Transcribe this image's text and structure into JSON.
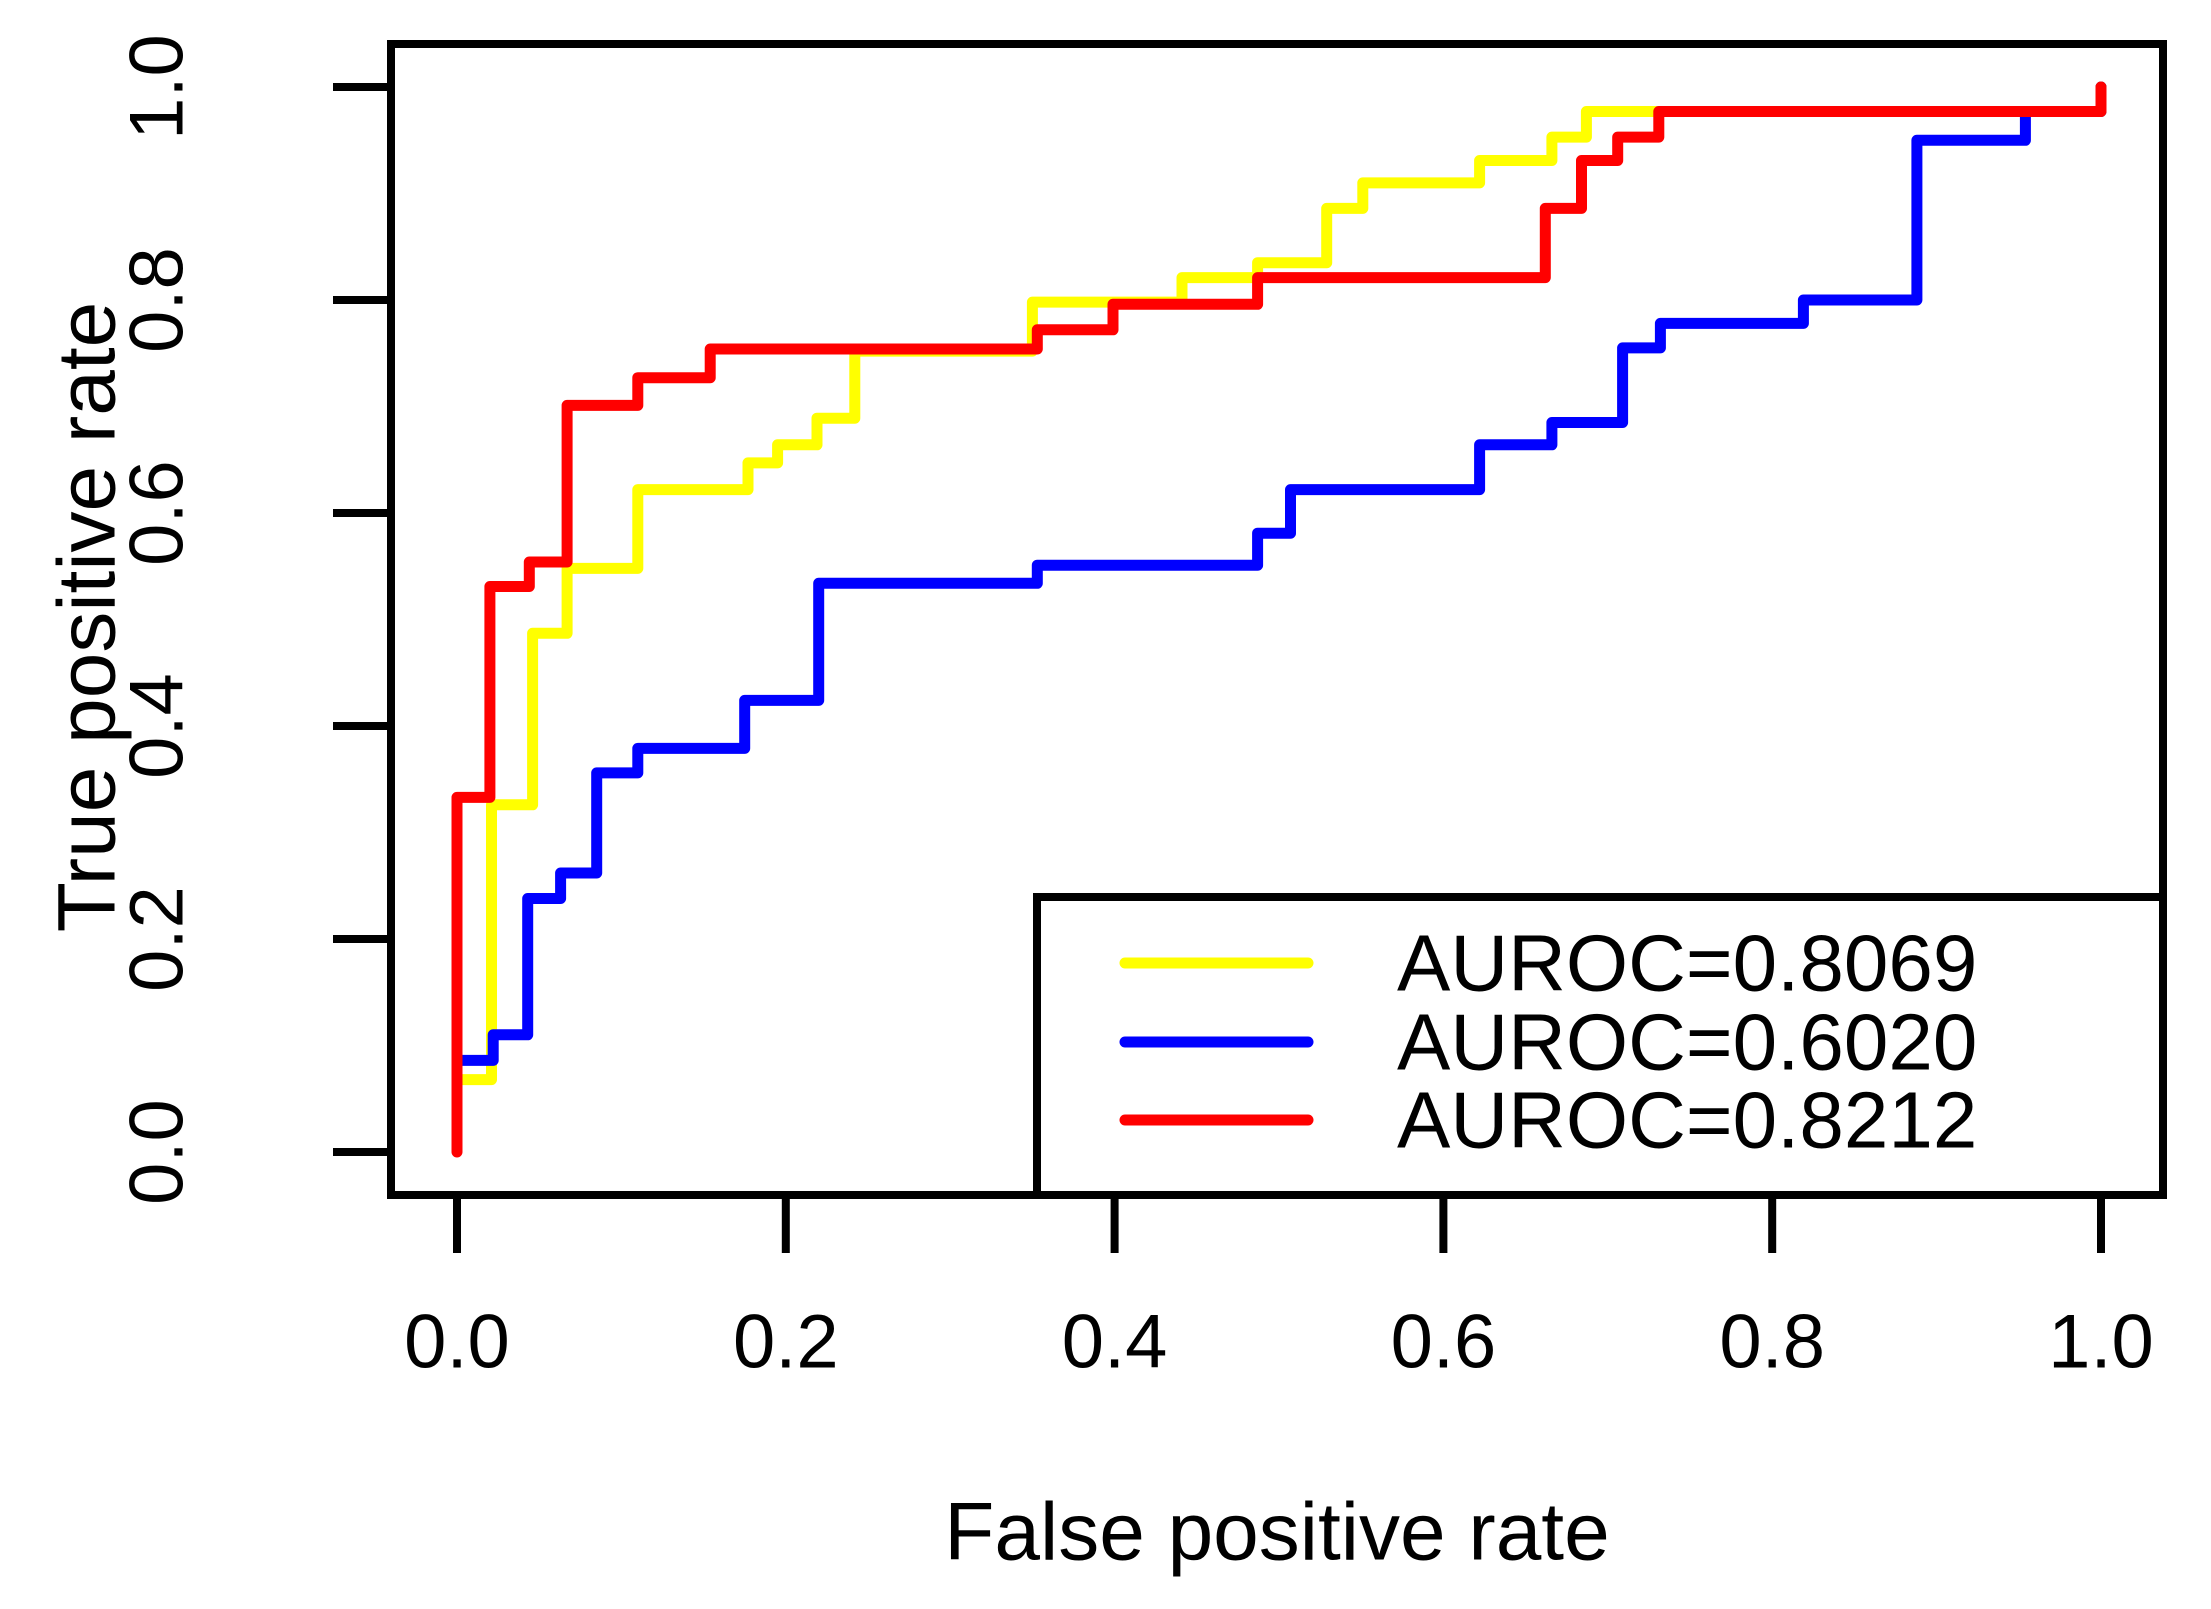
{
  "figure": {
    "kind": "R base-graphics ROC plot",
    "background": "#ffffff",
    "frame_color": "#000000"
  },
  "chart_data": {
    "type": "line",
    "style": "roc-step-curves",
    "title": "",
    "xlabel": "False positive rate",
    "ylabel": "True positive rate",
    "grid": false,
    "x_axis": {
      "range": [
        0,
        1
      ],
      "range_padded": [
        -0.04,
        1.04
      ],
      "ticks": [
        0,
        0.2,
        0.4,
        0.6,
        0.8,
        1.0
      ],
      "tick_labels": [
        "0.0",
        "0.2",
        "0.4",
        "0.6",
        "0.8",
        "1.0"
      ]
    },
    "y_axis": {
      "range": [
        0,
        1
      ],
      "range_padded": [
        -0.04,
        1.04
      ],
      "ticks": [
        0,
        0.2,
        0.4,
        0.6,
        0.8,
        1.0
      ],
      "tick_labels": [
        "0.0",
        "0.2",
        "0.4",
        "0.6",
        "0.8",
        "1.0"
      ]
    },
    "legend": {
      "position": "bottomright",
      "border_color": "#000000",
      "entries": [
        {
          "label": "AUROC=0.8069",
          "color": "#ffff00"
        },
        {
          "label": "AUROC=0.6020",
          "color": "#0000ff"
        },
        {
          "label": "AUROC=0.8212",
          "color": "#ff0000"
        }
      ]
    },
    "series": [
      {
        "name": "AUROC=0.8069",
        "auroc": 0.8069,
        "color": "#ffff00",
        "points": [
          [
            0,
            0.068
          ],
          [
            0.021,
            0.068
          ],
          [
            0.021,
            0.326
          ],
          [
            0.046,
            0.326
          ],
          [
            0.046,
            0.487
          ],
          [
            0.067,
            0.487
          ],
          [
            0.067,
            0.548
          ],
          [
            0.11,
            0.548
          ],
          [
            0.11,
            0.622
          ],
          [
            0.177,
            0.622
          ],
          [
            0.177,
            0.647
          ],
          [
            0.195,
            0.647
          ],
          [
            0.195,
            0.664
          ],
          [
            0.219,
            0.664
          ],
          [
            0.219,
            0.689
          ],
          [
            0.242,
            0.689
          ],
          [
            0.242,
            0.752
          ],
          [
            0.35,
            0.752
          ],
          [
            0.35,
            0.798
          ],
          [
            0.441,
            0.798
          ],
          [
            0.441,
            0.821
          ],
          [
            0.487,
            0.821
          ],
          [
            0.487,
            0.835
          ],
          [
            0.529,
            0.835
          ],
          [
            0.529,
            0.886
          ],
          [
            0.551,
            0.886
          ],
          [
            0.551,
            0.91
          ],
          [
            0.622,
            0.91
          ],
          [
            0.622,
            0.931
          ],
          [
            0.666,
            0.931
          ],
          [
            0.666,
            0.953
          ],
          [
            0.687,
            0.953
          ],
          [
            0.687,
            0.977
          ],
          [
            0.729,
            0.977
          ],
          [
            1,
            0.977
          ],
          [
            1,
            1
          ]
        ]
      },
      {
        "name": "AUROC=0.6020",
        "auroc": 0.602,
        "color": "#0000ff",
        "points": [
          [
            0,
            0.086
          ],
          [
            0.022,
            0.086
          ],
          [
            0.022,
            0.11
          ],
          [
            0.043,
            0.11
          ],
          [
            0.043,
            0.238
          ],
          [
            0.063,
            0.238
          ],
          [
            0.063,
            0.262
          ],
          [
            0.085,
            0.262
          ],
          [
            0.085,
            0.356
          ],
          [
            0.11,
            0.356
          ],
          [
            0.11,
            0.379
          ],
          [
            0.175,
            0.379
          ],
          [
            0.175,
            0.424
          ],
          [
            0.22,
            0.424
          ],
          [
            0.22,
            0.534
          ],
          [
            0.353,
            0.534
          ],
          [
            0.353,
            0.551
          ],
          [
            0.487,
            0.551
          ],
          [
            0.487,
            0.581
          ],
          [
            0.507,
            0.581
          ],
          [
            0.507,
            0.622
          ],
          [
            0.622,
            0.622
          ],
          [
            0.622,
            0.664
          ],
          [
            0.666,
            0.664
          ],
          [
            0.666,
            0.685
          ],
          [
            0.709,
            0.685
          ],
          [
            0.709,
            0.755
          ],
          [
            0.732,
            0.755
          ],
          [
            0.732,
            0.778
          ],
          [
            0.819,
            0.778
          ],
          [
            0.819,
            0.8
          ],
          [
            0.888,
            0.8
          ],
          [
            0.888,
            0.95
          ],
          [
            0.954,
            0.95
          ],
          [
            0.954,
            0.977
          ],
          [
            1,
            0.977
          ],
          [
            1,
            1
          ]
        ]
      },
      {
        "name": "AUROC=0.8212",
        "auroc": 0.8212,
        "color": "#ff0000",
        "points": [
          [
            0,
            0
          ],
          [
            0,
            0.333
          ],
          [
            0.02,
            0.333
          ],
          [
            0.02,
            0.531
          ],
          [
            0.044,
            0.531
          ],
          [
            0.044,
            0.554
          ],
          [
            0.067,
            0.554
          ],
          [
            0.067,
            0.701
          ],
          [
            0.11,
            0.701
          ],
          [
            0.11,
            0.727
          ],
          [
            0.154,
            0.727
          ],
          [
            0.154,
            0.754
          ],
          [
            0.353,
            0.754
          ],
          [
            0.353,
            0.772
          ],
          [
            0.399,
            0.772
          ],
          [
            0.399,
            0.796
          ],
          [
            0.487,
            0.796
          ],
          [
            0.487,
            0.821
          ],
          [
            0.662,
            0.821
          ],
          [
            0.662,
            0.886
          ],
          [
            0.684,
            0.886
          ],
          [
            0.684,
            0.931
          ],
          [
            0.706,
            0.931
          ],
          [
            0.706,
            0.953
          ],
          [
            0.731,
            0.953
          ],
          [
            0.731,
            0.977
          ],
          [
            1,
            0.977
          ],
          [
            1,
            1
          ]
        ]
      }
    ]
  }
}
